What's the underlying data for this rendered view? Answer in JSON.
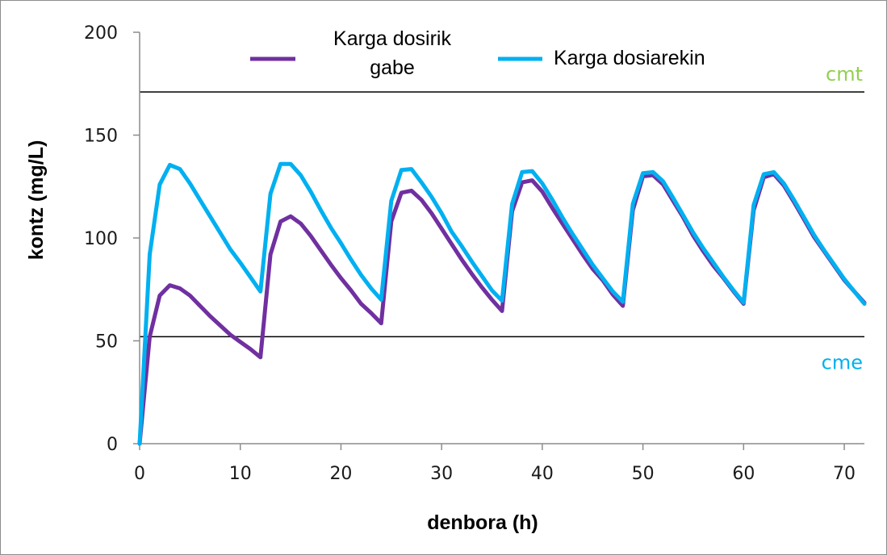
{
  "chart_data": {
    "type": "line",
    "title": "",
    "xlabel": "denbora (h)",
    "ylabel": "kontz (mg/L)",
    "xlim": [
      0,
      72
    ],
    "ylim": [
      0,
      200
    ],
    "x_ticks": [
      0,
      10,
      20,
      30,
      40,
      50,
      60,
      70
    ],
    "y_ticks": [
      0,
      50,
      100,
      150,
      200
    ],
    "grid": false,
    "legend_position": "top",
    "reference_lines": [
      {
        "label": "cmt",
        "y": 171,
        "label_color": "#92d050",
        "line_color": "#000000"
      },
      {
        "label": "cme",
        "y": 52,
        "label_color": "#00b0f0",
        "line_color": "#000000"
      }
    ],
    "series": [
      {
        "name": "Karga dosirik gabe",
        "color": "#7030a0",
        "x": [
          0,
          1,
          2,
          3,
          4,
          5,
          6,
          7,
          8,
          9,
          10,
          11,
          12,
          13,
          14,
          15,
          16,
          17,
          18,
          19,
          20,
          21,
          22,
          23,
          24,
          25,
          26,
          27,
          28,
          29,
          30,
          31,
          32,
          33,
          34,
          35,
          36,
          37,
          38,
          39,
          40,
          41,
          42,
          43,
          44,
          45,
          46,
          47,
          48,
          49,
          50,
          51,
          52,
          53,
          54,
          55,
          56,
          57,
          58,
          59,
          60,
          61,
          62,
          63,
          64,
          65,
          66,
          67,
          68,
          69,
          70,
          71,
          72
        ],
        "values": [
          0,
          52,
          72,
          77,
          75.5,
          72,
          67,
          62,
          57.5,
          53,
          49.5,
          46,
          42,
          92,
          108,
          110.5,
          107,
          101,
          94,
          87,
          80.5,
          74.5,
          68,
          63.5,
          58.5,
          108,
          122,
          123,
          118.5,
          112,
          104.5,
          97,
          89.5,
          82.5,
          76,
          70,
          64.5,
          113,
          127,
          128,
          122.5,
          114.5,
          107,
          99.5,
          92,
          85,
          79.5,
          72.5,
          67,
          113.5,
          130,
          130.5,
          126,
          118,
          110,
          101,
          93.5,
          86.5,
          80.5,
          74,
          68,
          113.5,
          129.5,
          131,
          125.5,
          117.5,
          109,
          100.5,
          93.5,
          86.5,
          79.5,
          74,
          68.5
        ]
      },
      {
        "name": "Karga dosiarekin",
        "color": "#00b0f0",
        "x": [
          0,
          1,
          2,
          3,
          4,
          5,
          6,
          7,
          8,
          9,
          10,
          11,
          12,
          13,
          14,
          15,
          16,
          17,
          18,
          19,
          20,
          21,
          22,
          23,
          24,
          25,
          26,
          27,
          28,
          29,
          30,
          31,
          32,
          33,
          34,
          35,
          36,
          37,
          38,
          39,
          40,
          41,
          42,
          43,
          44,
          45,
          46,
          47,
          48,
          49,
          50,
          51,
          52,
          53,
          54,
          55,
          56,
          57,
          58,
          59,
          60,
          61,
          62,
          63,
          64,
          65,
          66,
          67,
          68,
          69,
          70,
          71,
          72
        ],
        "values": [
          0,
          92,
          126,
          135.5,
          133.5,
          126.5,
          118.5,
          110.5,
          102.5,
          94.5,
          88,
          81,
          74,
          121.5,
          136,
          136,
          130.5,
          122.5,
          113.5,
          105,
          97.5,
          89.5,
          82,
          75.5,
          70,
          118,
          133,
          133.5,
          127,
          120,
          112,
          103,
          96,
          88.5,
          81.5,
          74.5,
          69.5,
          116.5,
          132,
          132.5,
          126.5,
          118.5,
          110,
          102,
          94.5,
          87,
          80.5,
          74,
          69,
          116.5,
          131.5,
          132,
          127.5,
          119.5,
          111,
          102.5,
          95,
          88,
          81,
          74.5,
          68.5,
          116,
          131,
          132,
          126.5,
          118.5,
          110,
          101.5,
          94,
          87,
          80,
          74,
          68
        ]
      }
    ]
  }
}
